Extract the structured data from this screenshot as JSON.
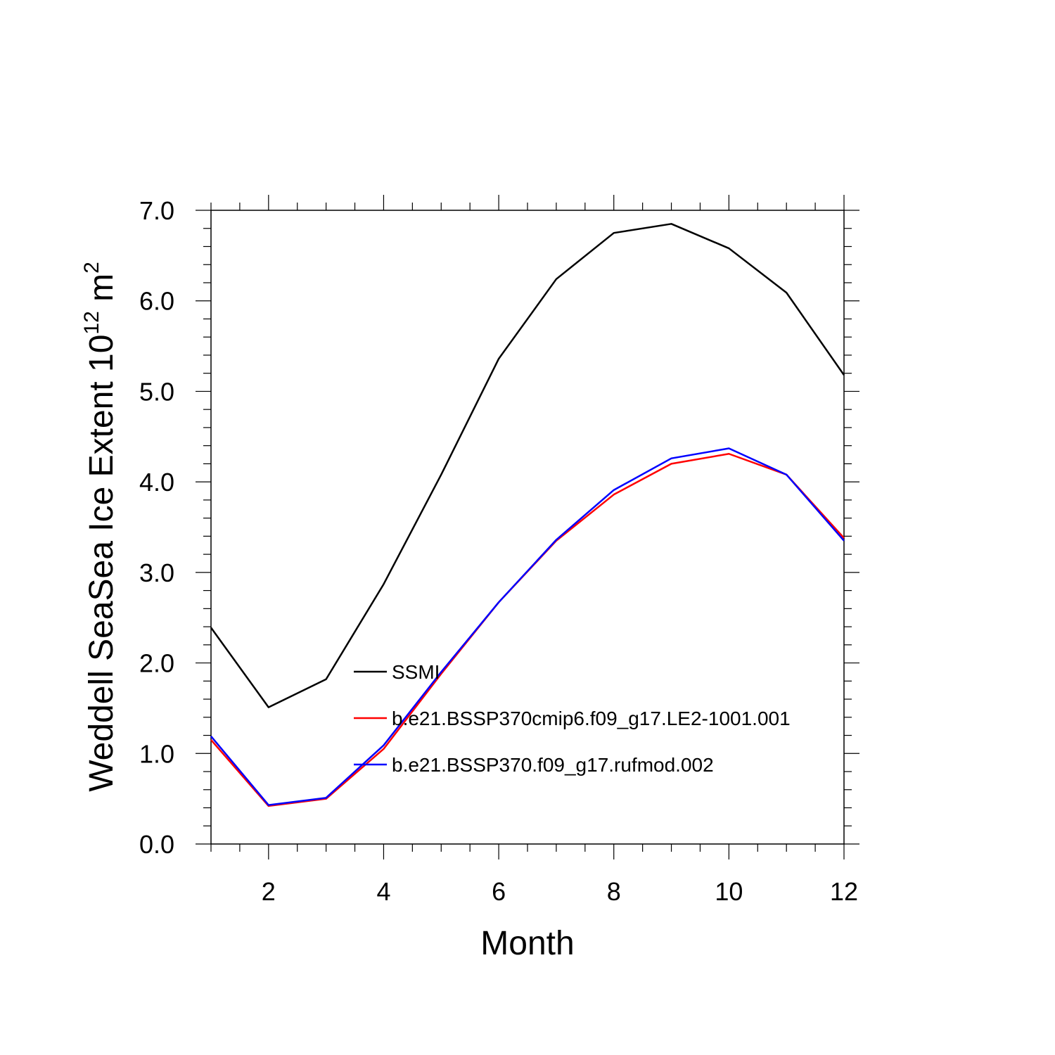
{
  "chart_data": {
    "type": "line",
    "title": "",
    "xlabel": "Month",
    "ylabel_main": "Weddell SeaSea Ice Extent 10",
    "ylabel_sup": "12",
    "ylabel_unit": " m",
    "ylabel_unit_sup": "2",
    "xlim": [
      1,
      12
    ],
    "ylim": [
      0,
      7
    ],
    "x_ticks": [
      "2",
      "4",
      "6",
      "8",
      "10",
      "12"
    ],
    "y_ticks": [
      "0.0",
      "1.0",
      "2.0",
      "3.0",
      "4.0",
      "5.0",
      "6.0",
      "7.0"
    ],
    "grid": false,
    "legend_position": "inside-lower-center",
    "x": [
      1,
      2,
      3,
      4,
      5,
      6,
      7,
      8,
      9,
      10,
      11,
      12
    ],
    "series": [
      {
        "name": "SSMI",
        "color": "#000000",
        "values": [
          2.39,
          1.51,
          1.82,
          2.87,
          4.08,
          5.36,
          6.24,
          6.75,
          6.85,
          6.58,
          6.09,
          5.18
        ]
      },
      {
        "name": "b.e21.BSSP370cmip6.f09_g17.LE2-1001.001",
        "color": "#ff0000",
        "values": [
          1.15,
          0.42,
          0.5,
          1.05,
          1.88,
          2.67,
          3.35,
          3.86,
          4.2,
          4.31,
          4.08,
          3.38
        ]
      },
      {
        "name": "b.e21.BSSP370.f09_g17.rufmod.002",
        "color": "#0000ff",
        "values": [
          1.19,
          0.43,
          0.51,
          1.09,
          1.9,
          2.67,
          3.36,
          3.91,
          4.26,
          4.37,
          4.08,
          3.35
        ]
      }
    ]
  }
}
